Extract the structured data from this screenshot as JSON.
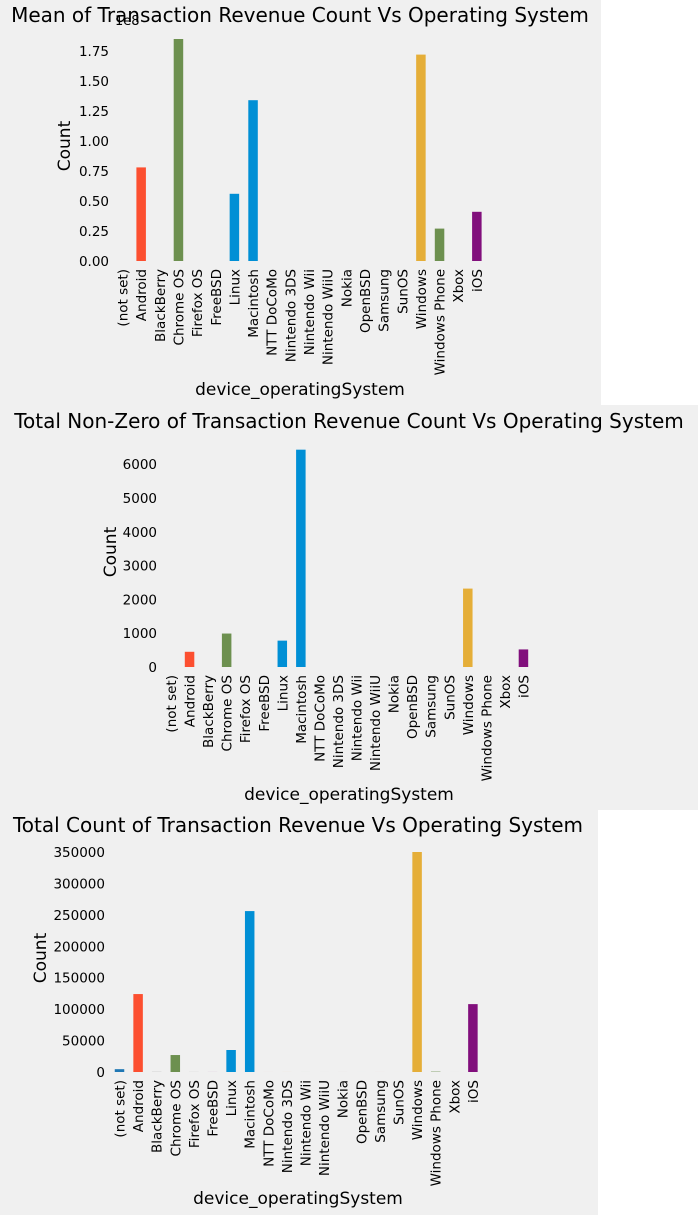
{
  "chart_data": [
    {
      "type": "bar",
      "title": "Mean of Transaction Revenue Count Vs Operating System",
      "xlabel": "device_operatingSystem",
      "ylabel": "Count",
      "offset_label": "1e8",
      "ylim": [
        0,
        1.85
      ],
      "yticks": [
        0,
        0.25,
        0.5,
        0.75,
        1.0,
        1.25,
        1.5,
        1.75
      ],
      "ytick_labels": [
        "0.00",
        "0.25",
        "0.50",
        "0.75",
        "1.00",
        "1.25",
        "1.50",
        "1.75"
      ],
      "categories": [
        "(not set)",
        "Android",
        "BlackBerry",
        "Chrome OS",
        "Firefox OS",
        "FreeBSD",
        "Linux",
        "Macintosh",
        "NTT DoCoMo",
        "Nintendo 3DS",
        "Nintendo Wii",
        "Nintendo WiiU",
        "Nokia",
        "OpenBSD",
        "Samsung",
        "SunOS",
        "Windows",
        "Windows Phone",
        "Xbox",
        "iOS"
      ],
      "values": [
        0,
        0.78,
        0,
        1.85,
        0,
        0,
        0.56,
        1.34,
        0,
        0,
        0,
        0,
        0,
        0,
        0,
        0,
        1.72,
        0.27,
        0,
        0.41
      ],
      "grid": false
    },
    {
      "type": "bar",
      "title": "Total Non-Zero of Transaction Revenue Count Vs Operating System",
      "xlabel": "device_operatingSystem",
      "ylabel": "Count",
      "ylim": [
        0,
        6450
      ],
      "yticks": [
        0,
        1000,
        2000,
        3000,
        4000,
        5000,
        6000
      ],
      "ytick_labels": [
        "0",
        "1000",
        "2000",
        "3000",
        "4000",
        "5000",
        "6000"
      ],
      "categories": [
        "(not set)",
        "Android",
        "BlackBerry",
        "Chrome OS",
        "Firefox OS",
        "FreeBSD",
        "Linux",
        "Macintosh",
        "NTT DoCoMo",
        "Nintendo 3DS",
        "Nintendo Wii",
        "Nintendo WiiU",
        "Nokia",
        "OpenBSD",
        "Samsung",
        "SunOS",
        "Windows",
        "Windows Phone",
        "Xbox",
        "iOS"
      ],
      "values": [
        0,
        450,
        0,
        990,
        0,
        0,
        780,
        6430,
        0,
        0,
        0,
        0,
        0,
        0,
        0,
        0,
        2320,
        0,
        0,
        520
      ],
      "grid": false
    },
    {
      "type": "bar",
      "title": "Total Count of Transaction Revenue Vs Operating System",
      "xlabel": "device_operatingSystem",
      "ylabel": "Count",
      "ylim": [
        0,
        350000
      ],
      "yticks": [
        0,
        50000,
        100000,
        150000,
        200000,
        250000,
        300000,
        350000
      ],
      "ytick_labels": [
        "0",
        "50000",
        "100000",
        "150000",
        "200000",
        "250000",
        "300000",
        "350000"
      ],
      "categories": [
        "(not set)",
        "Android",
        "BlackBerry",
        "Chrome OS",
        "Firefox OS",
        "FreeBSD",
        "Linux",
        "Macintosh",
        "NTT DoCoMo",
        "Nintendo 3DS",
        "Nintendo Wii",
        "Nintendo WiiU",
        "Nokia",
        "OpenBSD",
        "Samsung",
        "SunOS",
        "Windows",
        "Windows Phone",
        "Xbox",
        "iOS"
      ],
      "values": [
        4500,
        124000,
        200,
        27000,
        100,
        50,
        35000,
        256000,
        20,
        30,
        20,
        20,
        20,
        10,
        20,
        10,
        350000,
        600,
        20,
        108000
      ],
      "grid": false
    }
  ],
  "colors": {
    "background": "#f0f0f0",
    "text": "#000000",
    "bars": [
      "#1f77b4",
      "#fc4f30",
      "#7f7f7f",
      "#6d904f",
      "#8b8b8b",
      "#810f7c",
      "#008fd5",
      "#008fd5",
      "#fc4f30",
      "#e5ae38",
      "#6d904f",
      "#8b8b8b",
      "#810f7c",
      "#008fd5",
      "#fc4f30",
      "#e5ae38",
      "#e5ae38",
      "#6d904f",
      "#8b8b8b",
      "#810f7c"
    ]
  }
}
